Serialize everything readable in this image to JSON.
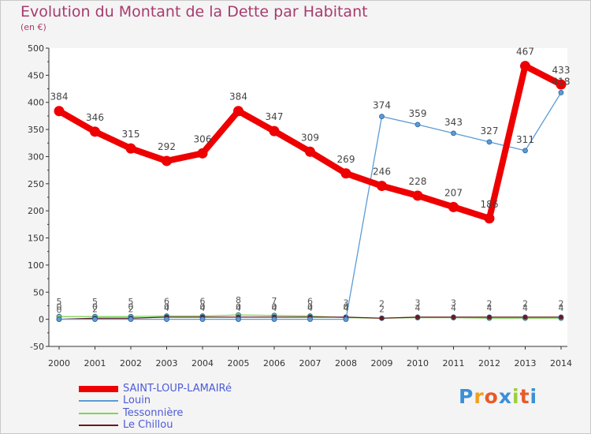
{
  "chart_data": {
    "type": "line",
    "title": "Evolution du Montant de la Dette par Habitant",
    "unit_label": "(en €)",
    "xlabel": "",
    "ylabel": "",
    "x": [
      "2000",
      "2001",
      "2002",
      "2003",
      "2004",
      "2005",
      "2006",
      "2007",
      "2008",
      "2009",
      "2010",
      "2011",
      "2012",
      "2013",
      "2014"
    ],
    "ylim": [
      -50,
      500
    ],
    "yticks": [
      "500",
      "450",
      "400",
      "350",
      "300",
      "250",
      "200",
      "150",
      "100",
      "50",
      "0",
      "-50"
    ],
    "grid": false,
    "legend_position": "bottom-left",
    "series": [
      {
        "name": "SAINT-LOUP-LAMAIRé",
        "color": "#ee0000",
        "values": [
          384,
          346,
          315,
          292,
          306,
          384,
          347,
          309,
          269,
          246,
          228,
          207,
          186,
          467,
          433
        ],
        "labels": [
          "384",
          "346",
          "315",
          "292",
          "306",
          "384",
          "347",
          "309",
          "269",
          "246",
          "228",
          "207",
          "186",
          "467",
          "433"
        ]
      },
      {
        "name": "Louin",
        "color": "#5b9bd5",
        "values": [
          0,
          0,
          0,
          0,
          0,
          0,
          0,
          0,
          0,
          374,
          359,
          343,
          327,
          311,
          418
        ],
        "labels": [
          "0",
          "0",
          "0",
          "0",
          "0",
          "0",
          "0",
          "0",
          "0",
          "374",
          "359",
          "343",
          "327",
          "311",
          "418"
        ]
      },
      {
        "name": "Tessonnière",
        "color": "#7fd65a",
        "values": [
          5,
          5,
          5,
          6,
          6,
          8,
          7,
          6,
          3,
          2,
          3,
          3,
          2,
          2,
          2
        ],
        "labels": [
          "5",
          "5",
          "5",
          "6",
          "6",
          "8",
          "7",
          "6",
          "3",
          "2",
          "3",
          "3",
          "2",
          "2",
          "2"
        ]
      },
      {
        "name": "Le Chillou",
        "color": "#6b1a1a",
        "values": [
          0,
          2,
          2,
          4,
          4,
          4,
          4,
          4,
          4,
          2,
          4,
          4,
          4,
          4,
          4
        ],
        "labels": [
          "0",
          "2",
          "2",
          "4",
          "4",
          "4",
          "4",
          "4",
          "4",
          "2",
          "4",
          "4",
          "4",
          "4",
          "4"
        ]
      }
    ]
  },
  "brand": {
    "letters": [
      "P",
      "r",
      "o",
      "x",
      "i",
      "t",
      "i"
    ],
    "colors": [
      "#3a8fd8",
      "#f0a020",
      "#e65b2a",
      "#3a8fd8",
      "#9bcf3a",
      "#e65b2a",
      "#3a8fd8"
    ]
  }
}
